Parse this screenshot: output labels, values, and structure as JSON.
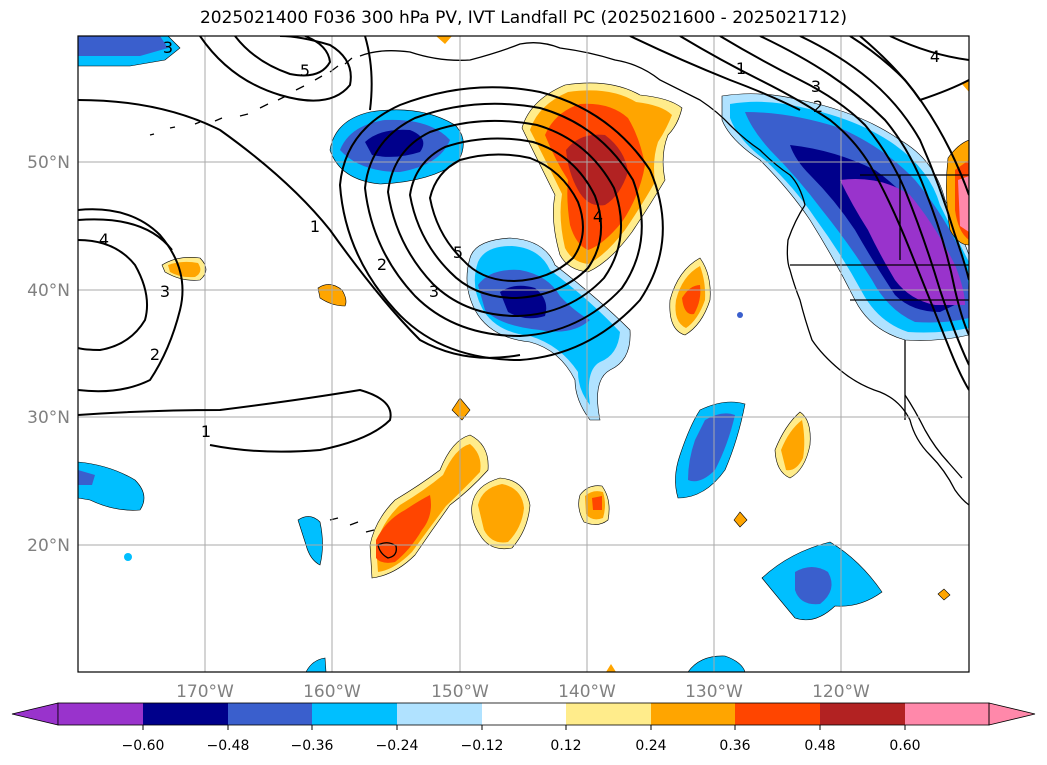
{
  "title": "2025021400 F036 300 hPa PV, IVT Landfall PC (2025021600 - 2025021712)",
  "lat_labels": [
    "50°N",
    "40°N",
    "30°N",
    "20°N"
  ],
  "lon_labels": [
    "170°W",
    "160°W",
    "150°W",
    "140°W",
    "130°W",
    "120°W"
  ],
  "colorbar": {
    "tick_labels": [
      "−0.60",
      "−0.48",
      "−0.36",
      "−0.24",
      "−0.12",
      "0.12",
      "0.24",
      "0.36",
      "0.48",
      "0.60"
    ],
    "colors": [
      "#9933cc",
      "#00008b",
      "#3a5fcd",
      "#00bfff",
      "#b0e2ff",
      "#ffffff",
      "#ffec8b",
      "#ffa500",
      "#ff4500",
      "#b22222",
      "#ff88aa"
    ]
  },
  "contour_labels": [
    "3",
    "5",
    "4",
    "3",
    "2",
    "1",
    "2",
    "3",
    "5",
    "4",
    "1",
    "3",
    "2",
    "1",
    "4"
  ],
  "colors": {
    "grid": "#aaaaaa",
    "axis_label": "#808080",
    "contour": "#000000"
  }
}
